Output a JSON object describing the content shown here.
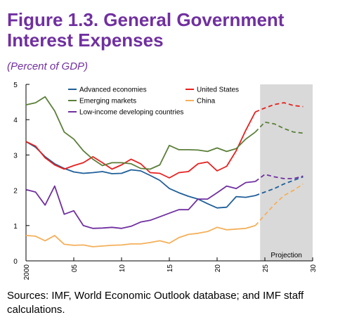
{
  "figure": {
    "title": "Figure 1.3. General Government Interest Expenses",
    "subtitle": "(Percent of GDP)",
    "source": "Sources: IMF, World Economic Outlook database; and IMF staff calculations."
  },
  "chart_data": {
    "type": "line",
    "xlim": [
      2000,
      2030
    ],
    "ylim": [
      0,
      5
    ],
    "x_ticks": [
      2000,
      2005,
      2010,
      2015,
      2020,
      2025,
      2030
    ],
    "x_tick_labels": [
      "2000",
      "05",
      "10",
      "15",
      "20",
      "25",
      "30"
    ],
    "y_ticks": [
      0,
      1,
      2,
      3,
      4,
      5
    ],
    "y_tick_labels": [
      "0",
      "1",
      "2",
      "3",
      "4",
      "5"
    ],
    "projection": {
      "from": 2024.5,
      "to": 2030,
      "label": "Projection",
      "color": "#d9d9d9"
    },
    "grid": false,
    "legend_position": "top",
    "series": [
      {
        "name": "Advanced economies",
        "color": "#1f5f99",
        "points": [
          [
            2000,
            3.38
          ],
          [
            2001,
            3.22
          ],
          [
            2002,
            2.95
          ],
          [
            2003,
            2.75
          ],
          [
            2004,
            2.62
          ],
          [
            2005,
            2.52
          ],
          [
            2006,
            2.48
          ],
          [
            2007,
            2.5
          ],
          [
            2008,
            2.53
          ],
          [
            2009,
            2.47
          ],
          [
            2010,
            2.48
          ],
          [
            2011,
            2.58
          ],
          [
            2012,
            2.55
          ],
          [
            2013,
            2.42
          ],
          [
            2014,
            2.28
          ],
          [
            2015,
            2.05
          ],
          [
            2016,
            1.93
          ],
          [
            2017,
            1.83
          ],
          [
            2018,
            1.75
          ],
          [
            2019,
            1.62
          ],
          [
            2020,
            1.5
          ],
          [
            2021,
            1.52
          ],
          [
            2022,
            1.82
          ],
          [
            2023,
            1.8
          ],
          [
            2024,
            1.85
          ],
          [
            2025,
            1.95
          ],
          [
            2026,
            2.05
          ],
          [
            2027,
            2.18
          ],
          [
            2028,
            2.28
          ],
          [
            2029,
            2.38
          ]
        ],
        "projection_start": 2024
      },
      {
        "name": "United States",
        "color": "#e8201f",
        "points": [
          [
            2000,
            3.38
          ],
          [
            2001,
            3.25
          ],
          [
            2002,
            2.92
          ],
          [
            2003,
            2.72
          ],
          [
            2004,
            2.6
          ],
          [
            2005,
            2.7
          ],
          [
            2006,
            2.78
          ],
          [
            2007,
            2.95
          ],
          [
            2008,
            2.78
          ],
          [
            2009,
            2.6
          ],
          [
            2010,
            2.72
          ],
          [
            2011,
            2.88
          ],
          [
            2012,
            2.75
          ],
          [
            2013,
            2.5
          ],
          [
            2014,
            2.48
          ],
          [
            2015,
            2.35
          ],
          [
            2016,
            2.5
          ],
          [
            2017,
            2.53
          ],
          [
            2018,
            2.75
          ],
          [
            2019,
            2.8
          ],
          [
            2020,
            2.55
          ],
          [
            2021,
            2.68
          ],
          [
            2022,
            3.12
          ],
          [
            2023,
            3.7
          ],
          [
            2024,
            4.22
          ],
          [
            2025,
            4.33
          ],
          [
            2026,
            4.43
          ],
          [
            2027,
            4.48
          ],
          [
            2028,
            4.4
          ],
          [
            2029,
            4.37
          ]
        ],
        "projection_start": 2024
      },
      {
        "name": "Emerging markets",
        "color": "#5c7f3a",
        "points": [
          [
            2000,
            4.42
          ],
          [
            2001,
            4.48
          ],
          [
            2002,
            4.65
          ],
          [
            2003,
            4.25
          ],
          [
            2004,
            3.65
          ],
          [
            2005,
            3.45
          ],
          [
            2006,
            3.12
          ],
          [
            2007,
            2.88
          ],
          [
            2008,
            2.7
          ],
          [
            2009,
            2.78
          ],
          [
            2010,
            2.78
          ],
          [
            2011,
            2.75
          ],
          [
            2012,
            2.62
          ],
          [
            2013,
            2.6
          ],
          [
            2014,
            2.72
          ],
          [
            2015,
            3.27
          ],
          [
            2016,
            3.15
          ],
          [
            2017,
            3.15
          ],
          [
            2018,
            3.14
          ],
          [
            2019,
            3.1
          ],
          [
            2020,
            3.2
          ],
          [
            2021,
            3.1
          ],
          [
            2022,
            3.18
          ],
          [
            2023,
            3.45
          ],
          [
            2024,
            3.65
          ],
          [
            2025,
            3.93
          ],
          [
            2026,
            3.88
          ],
          [
            2027,
            3.75
          ],
          [
            2028,
            3.65
          ],
          [
            2029,
            3.62
          ]
        ],
        "projection_start": 2024
      },
      {
        "name": "China",
        "color": "#f4b05a",
        "points": [
          [
            2000,
            0.72
          ],
          [
            2001,
            0.7
          ],
          [
            2002,
            0.57
          ],
          [
            2003,
            0.72
          ],
          [
            2004,
            0.47
          ],
          [
            2005,
            0.44
          ],
          [
            2006,
            0.45
          ],
          [
            2007,
            0.4
          ],
          [
            2008,
            0.42
          ],
          [
            2009,
            0.44
          ],
          [
            2010,
            0.45
          ],
          [
            2011,
            0.48
          ],
          [
            2012,
            0.48
          ],
          [
            2013,
            0.52
          ],
          [
            2014,
            0.57
          ],
          [
            2015,
            0.5
          ],
          [
            2016,
            0.66
          ],
          [
            2017,
            0.75
          ],
          [
            2018,
            0.78
          ],
          [
            2019,
            0.83
          ],
          [
            2020,
            0.95
          ],
          [
            2021,
            0.88
          ],
          [
            2022,
            0.9
          ],
          [
            2023,
            0.92
          ],
          [
            2024,
            1.0
          ],
          [
            2025,
            1.3
          ],
          [
            2026,
            1.6
          ],
          [
            2027,
            1.85
          ],
          [
            2028,
            2.0
          ],
          [
            2029,
            2.18
          ]
        ],
        "projection_start": 2024
      },
      {
        "name": "Low-income developing countries",
        "color": "#7030a0",
        "points": [
          [
            2000,
            2.02
          ],
          [
            2001,
            1.95
          ],
          [
            2002,
            1.58
          ],
          [
            2003,
            2.12
          ],
          [
            2004,
            1.32
          ],
          [
            2005,
            1.42
          ],
          [
            2006,
            1.0
          ],
          [
            2007,
            0.92
          ],
          [
            2008,
            0.93
          ],
          [
            2009,
            0.95
          ],
          [
            2010,
            0.92
          ],
          [
            2011,
            0.98
          ],
          [
            2012,
            1.1
          ],
          [
            2013,
            1.15
          ],
          [
            2014,
            1.25
          ],
          [
            2015,
            1.35
          ],
          [
            2016,
            1.45
          ],
          [
            2017,
            1.45
          ],
          [
            2018,
            1.75
          ],
          [
            2019,
            1.75
          ],
          [
            2020,
            1.93
          ],
          [
            2021,
            2.12
          ],
          [
            2022,
            2.05
          ],
          [
            2023,
            2.22
          ],
          [
            2024,
            2.25
          ],
          [
            2025,
            2.45
          ],
          [
            2026,
            2.38
          ],
          [
            2027,
            2.33
          ],
          [
            2028,
            2.33
          ],
          [
            2029,
            2.4
          ]
        ],
        "projection_start": 2024
      }
    ]
  }
}
